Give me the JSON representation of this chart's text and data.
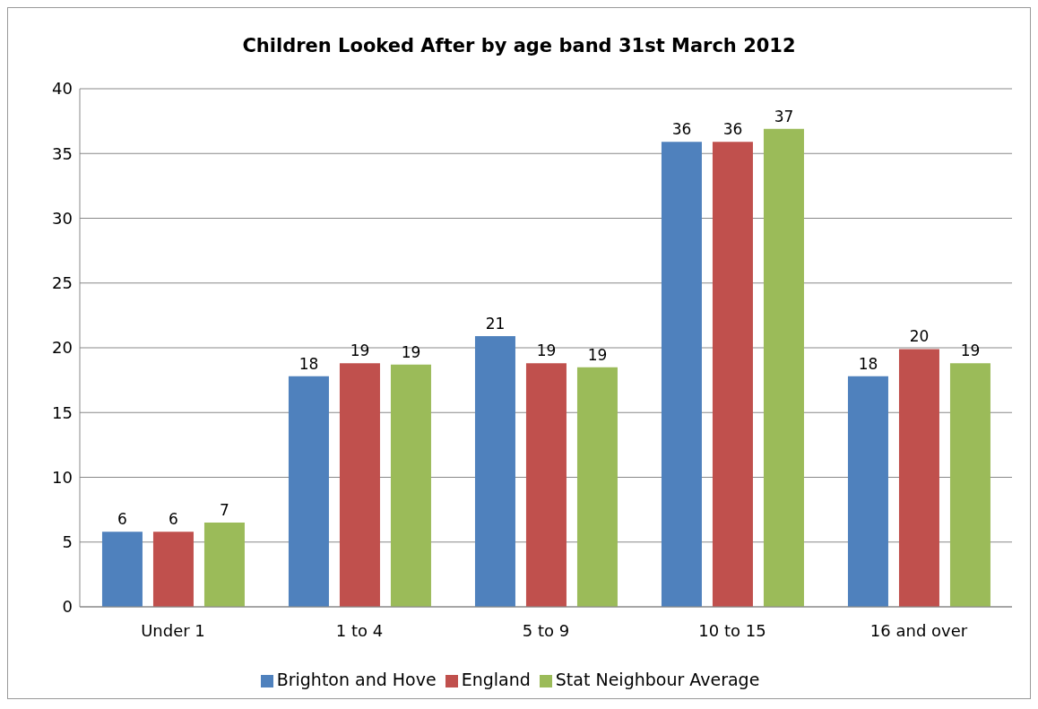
{
  "chart_data": {
    "type": "bar",
    "title": "Children Looked After by age band 31st March 2012",
    "categories": [
      "Under 1",
      "1 to 4",
      "5 to 9",
      "10 to 15",
      "16 and  over"
    ],
    "series": [
      {
        "name": "Brighton and Hove",
        "color": "#4f81bd",
        "values": [
          5.8,
          17.8,
          20.9,
          35.9,
          17.8
        ],
        "value_labels": [
          "6",
          "18",
          "21",
          "36",
          "18"
        ]
      },
      {
        "name": "England",
        "color": "#c0504d",
        "values": [
          5.8,
          18.8,
          18.8,
          35.9,
          19.9
        ],
        "value_labels": [
          "6",
          "19",
          "19",
          "36",
          "20"
        ]
      },
      {
        "name": "Stat Neighbour  Average",
        "color": "#9bbb59",
        "values": [
          6.5,
          18.7,
          18.5,
          36.9,
          18.8
        ],
        "value_labels": [
          "7",
          "19",
          "19",
          "37",
          "19"
        ]
      }
    ],
    "ylim": [
      0,
      40
    ],
    "yticks": [
      0,
      5,
      10,
      15,
      20,
      25,
      30,
      35,
      40
    ],
    "grid": "y",
    "legend": "bottom"
  }
}
